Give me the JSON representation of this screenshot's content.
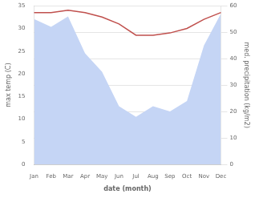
{
  "chart_data": {
    "type": "line",
    "xlabel": "date (month)",
    "ylabel": "max temp (C)",
    "y2label": "med. precipitation (kg/m2)",
    "categories": [
      "Jan",
      "Feb",
      "Mar",
      "Apr",
      "May",
      "Jun",
      "Jul",
      "Aug",
      "Sep",
      "Oct",
      "Nov",
      "Dec"
    ],
    "series": [
      {
        "type": "area",
        "color": "#c5d5f5",
        "axis": "y2",
        "values": [
          55,
          52,
          56,
          42,
          35,
          22,
          18,
          22,
          20,
          24,
          45,
          57
        ]
      },
      {
        "type": "line",
        "color": "#c0504d",
        "values": [
          33.5,
          33.5,
          34.0,
          33.5,
          32.5,
          31.0,
          28.5,
          28.5,
          29.0,
          30.0,
          32.0,
          33.5
        ]
      }
    ],
    "ylim": [
      0,
      35
    ],
    "yticks": [
      0,
      5,
      10,
      15,
      20,
      25,
      30,
      35
    ],
    "y2lim": [
      0,
      60
    ],
    "y2ticks": [
      0,
      10,
      20,
      30,
      40,
      50,
      60
    ],
    "grid": true
  }
}
